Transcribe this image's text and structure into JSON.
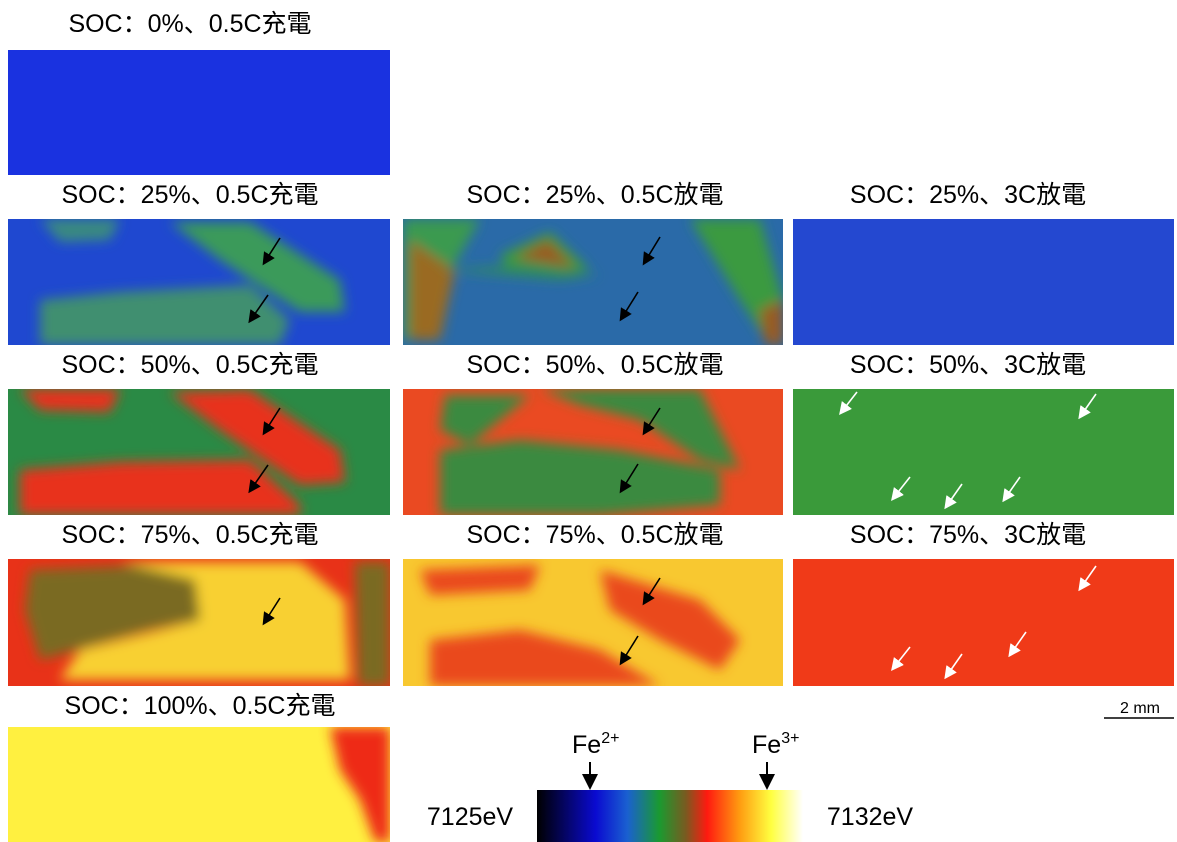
{
  "rows": [
    [
      {
        "label": "SOC：0%、0.5C充電"
      }
    ],
    [
      {
        "label": "SOC：25%、0.5C充電"
      },
      {
        "label": "SOC：25%、0.5C放電"
      },
      {
        "label": "SOC：25%、3C放電"
      }
    ],
    [
      {
        "label": "SOC：50%、0.5C充電"
      },
      {
        "label": "SOC：50%、0.5C放電"
      },
      {
        "label": "SOC：50%、3C放電"
      }
    ],
    [
      {
        "label": "SOC：75%、0.5C充電"
      },
      {
        "label": "SOC：75%、0.5C放電"
      },
      {
        "label": "SOC：75%、3C放電"
      }
    ],
    [
      {
        "label": "SOC：100%、0.5C充電"
      }
    ]
  ],
  "scale_bar": "2 mm",
  "colorbar": {
    "min_label": "7125eV",
    "max_label": "7132eV",
    "markers": [
      {
        "base": "Fe",
        "sup": "2+"
      },
      {
        "base": "Fe",
        "sup": "3+"
      }
    ]
  }
}
